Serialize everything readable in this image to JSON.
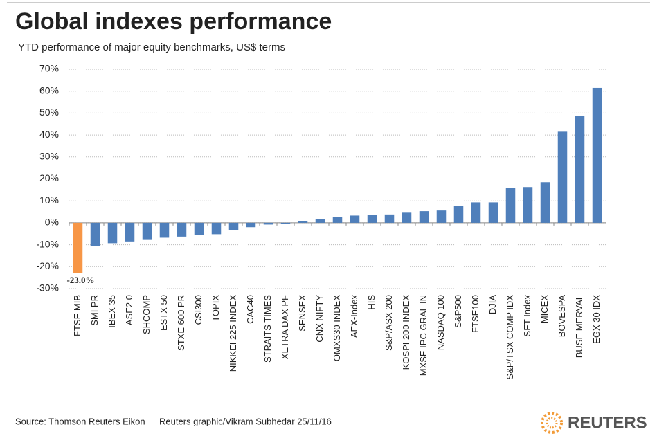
{
  "chart_data": {
    "type": "bar",
    "title": "Global indexes performance",
    "subtitle": "YTD performance of major equity benchmarks, US$ terms",
    "categories": [
      "FTSE MIB",
      "SMI PR",
      "IBEX 35",
      "ASE2 0",
      "SHCOMP",
      "ESTX 50",
      "STXE 600 PR",
      "CSI300",
      "TOPIX",
      "NIKKEI 225 INDEX",
      "CAC40",
      "STRAITS TIMES",
      "XETRA DAX PF",
      "SENSEX",
      "CNX NIFTY",
      "OMXS30 INDEX",
      "AEX-Index",
      "HIS",
      "S&P/ASX 200",
      "KOSPI 200 INDEX",
      "MXSE IPC GRAL IN",
      "NASDAQ 100",
      "S&P500",
      "FTSE100",
      "DJIA",
      "S&P/TSX COMP IDX",
      "SET Index",
      "MICEX",
      "BOVESPA",
      "BUSE MERVAL",
      "EGX 30 IDX"
    ],
    "values": [
      -23.0,
      -10.5,
      -9.3,
      -8.5,
      -7.8,
      -6.8,
      -6.3,
      -5.5,
      -5.2,
      -3.2,
      -2.0,
      -0.8,
      -0.4,
      0.6,
      1.8,
      2.5,
      3.3,
      3.5,
      3.8,
      4.6,
      5.3,
      5.6,
      7.8,
      9.3,
      9.3,
      15.8,
      16.3,
      18.5,
      41.5,
      48.8,
      61.5
    ],
    "value_labels": [
      "-23.0%",
      null,
      null,
      null,
      null,
      null,
      null,
      null,
      null,
      null,
      null,
      null,
      null,
      null,
      null,
      null,
      null,
      null,
      null,
      null,
      null,
      null,
      null,
      null,
      null,
      null,
      null,
      null,
      null,
      null,
      null
    ],
    "colors": [
      "#f79646",
      "#4f7fbb",
      "#4f7fbb",
      "#4f7fbb",
      "#4f7fbb",
      "#4f7fbb",
      "#4f7fbb",
      "#4f7fbb",
      "#4f7fbb",
      "#4f7fbb",
      "#4f7fbb",
      "#4f7fbb",
      "#4f7fbb",
      "#4f7fbb",
      "#4f7fbb",
      "#4f7fbb",
      "#4f7fbb",
      "#4f7fbb",
      "#4f7fbb",
      "#4f7fbb",
      "#4f7fbb",
      "#4f7fbb",
      "#4f7fbb",
      "#4f7fbb",
      "#4f7fbb",
      "#4f7fbb",
      "#4f7fbb",
      "#4f7fbb",
      "#4f7fbb",
      "#4f7fbb",
      "#4f7fbb"
    ],
    "ylim": [
      -30,
      70
    ],
    "yticks": [
      {
        "value": -30,
        "label": "-30%"
      },
      {
        "value": -20,
        "label": "-20%"
      },
      {
        "value": -10,
        "label": "-10%"
      },
      {
        "value": 0,
        "label": "0%"
      },
      {
        "value": 10,
        "label": "10%"
      },
      {
        "value": 20,
        "label": "20%"
      },
      {
        "value": 30,
        "label": "30%"
      },
      {
        "value": 40,
        "label": "40%"
      },
      {
        "value": 50,
        "label": "50%"
      },
      {
        "value": 60,
        "label": "60%"
      },
      {
        "value": 70,
        "label": "70%"
      }
    ],
    "grid": true,
    "source": "Source: Thomson Reuters Eikon",
    "credit": "Reuters graphic/Vikram Subhedar 25/11/16",
    "logo": "REUTERS"
  }
}
